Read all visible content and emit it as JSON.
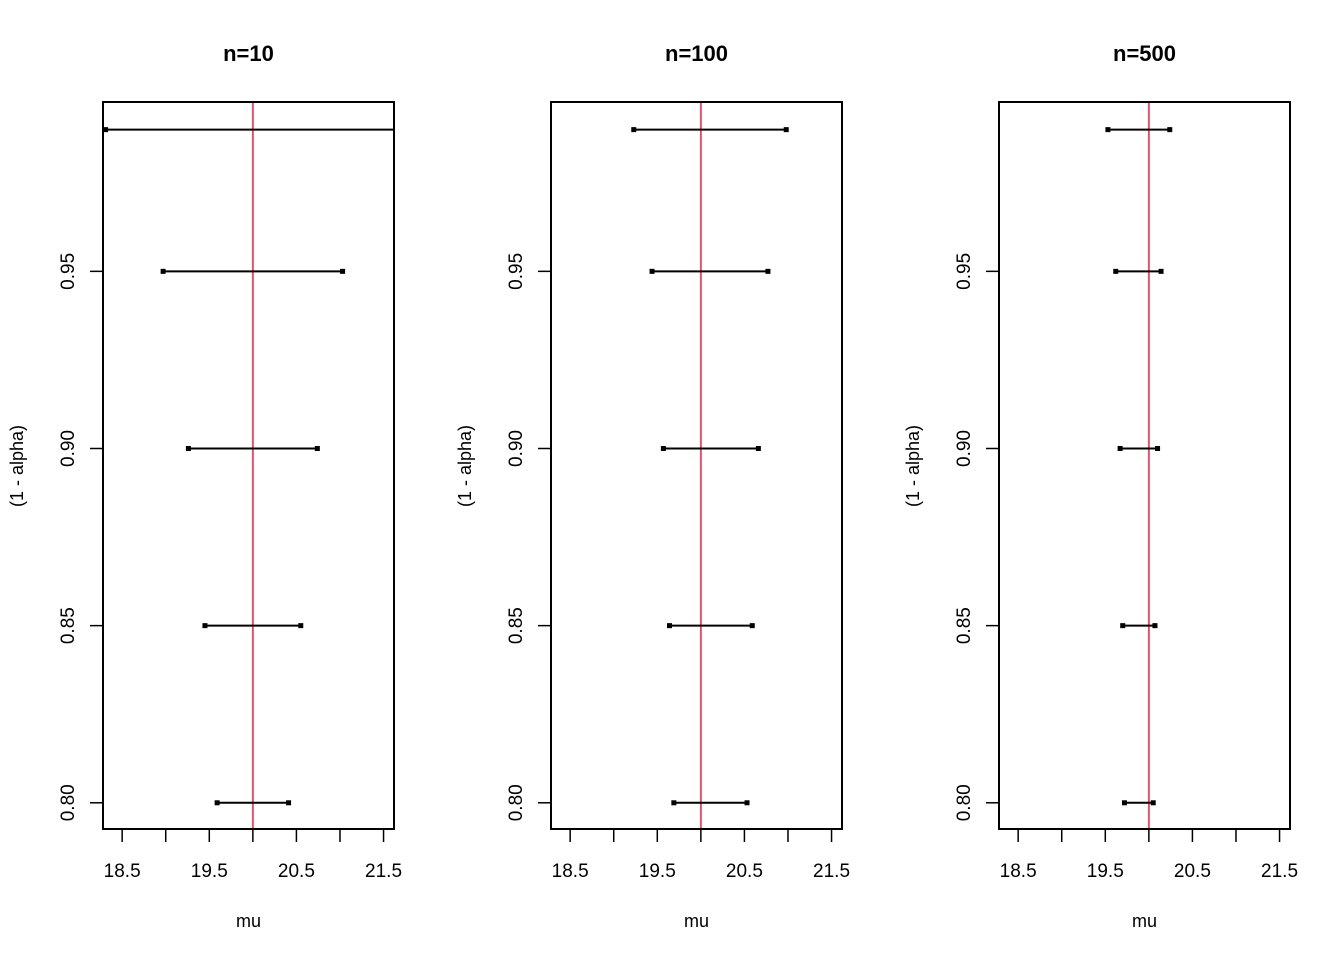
{
  "chart_data": [
    {
      "type": "interval",
      "title": "n=10",
      "xlabel": "mu",
      "ylabel": "(1 - alpha)",
      "xlim": [
        18.28,
        21.62
      ],
      "ylim": [
        0.7926,
        0.9978
      ],
      "xticks": [
        18.5,
        19.0,
        19.5,
        20.0,
        20.5,
        21.0,
        21.5
      ],
      "xtick_labels": [
        "18.5",
        "",
        "19.5",
        "",
        "20.5",
        "",
        "21.5"
      ],
      "yticks": [
        0.8,
        0.85,
        0.9,
        0.95
      ],
      "ytick_labels": [
        "0.80",
        "0.85",
        "0.90",
        "0.95"
      ],
      "reference_line": {
        "x": 20,
        "color": "#DF536B"
      },
      "intervals": [
        {
          "level": 0.8,
          "lower": 19.59,
          "upper": 20.41
        },
        {
          "level": 0.85,
          "lower": 19.45,
          "upper": 20.55
        },
        {
          "level": 0.9,
          "lower": 19.26,
          "upper": 20.74
        },
        {
          "level": 0.95,
          "lower": 18.97,
          "upper": 21.03
        },
        {
          "level": 0.99,
          "lower": 18.31,
          "upper": 21.69
        }
      ]
    },
    {
      "type": "interval",
      "title": "n=100",
      "xlabel": "mu",
      "ylabel": "(1 - alpha)",
      "xlim": [
        18.28,
        21.62
      ],
      "ylim": [
        0.7926,
        0.9978
      ],
      "xticks": [
        18.5,
        19.0,
        19.5,
        20.0,
        20.5,
        21.0,
        21.5
      ],
      "xtick_labels": [
        "18.5",
        "",
        "19.5",
        "",
        "20.5",
        "",
        "21.5"
      ],
      "yticks": [
        0.8,
        0.85,
        0.9,
        0.95
      ],
      "ytick_labels": [
        "0.80",
        "0.85",
        "0.90",
        "0.95"
      ],
      "reference_line": {
        "x": 20,
        "color": "#DF536B"
      },
      "intervals": [
        {
          "level": 0.8,
          "lower": 19.69,
          "upper": 20.53
        },
        {
          "level": 0.85,
          "lower": 19.64,
          "upper": 20.59
        },
        {
          "level": 0.9,
          "lower": 19.57,
          "upper": 20.66
        },
        {
          "level": 0.95,
          "lower": 19.44,
          "upper": 20.77
        },
        {
          "level": 0.99,
          "lower": 19.23,
          "upper": 20.98
        }
      ]
    },
    {
      "type": "interval",
      "title": "n=500",
      "xlabel": "mu",
      "ylabel": "(1 - alpha)",
      "xlim": [
        18.28,
        21.62
      ],
      "ylim": [
        0.7926,
        0.9978
      ],
      "xticks": [
        18.5,
        19.0,
        19.5,
        20.0,
        20.5,
        21.0,
        21.5
      ],
      "xtick_labels": [
        "18.5",
        "",
        "19.5",
        "",
        "20.5",
        "",
        "21.5"
      ],
      "yticks": [
        0.8,
        0.85,
        0.9,
        0.95
      ],
      "ytick_labels": [
        "0.80",
        "0.85",
        "0.90",
        "0.95"
      ],
      "reference_line": {
        "x": 20,
        "color": "#DF536B"
      },
      "intervals": [
        {
          "level": 0.8,
          "lower": 19.72,
          "upper": 20.05
        },
        {
          "level": 0.85,
          "lower": 19.7,
          "upper": 20.07
        },
        {
          "level": 0.9,
          "lower": 19.67,
          "upper": 20.1
        },
        {
          "level": 0.95,
          "lower": 19.62,
          "upper": 20.14
        },
        {
          "level": 0.99,
          "lower": 19.53,
          "upper": 20.24
        }
      ]
    }
  ]
}
